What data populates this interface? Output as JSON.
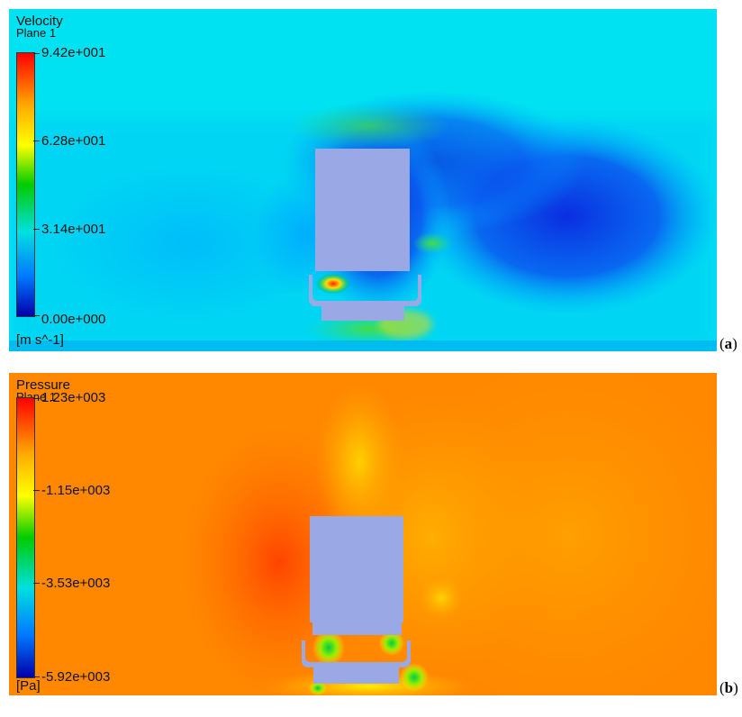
{
  "panel_a": {
    "legend_title": "Velocity",
    "legend_subtitle": "Plane 1",
    "ticks": [
      "9.42e+001",
      "6.28e+001",
      "3.14e+001",
      "0.00e+000"
    ],
    "unit": "[m s^-1]",
    "label": "(a)",
    "label_letter": "a"
  },
  "panel_b": {
    "legend_title": "Pressure",
    "legend_subtitle": "Plane 1",
    "ticks": [
      "1.23e+003",
      "-1.15e+003",
      "-3.53e+003",
      "-5.92e+003"
    ],
    "unit": "[Pa]",
    "label": "(b)",
    "label_letter": "b"
  },
  "colors": {
    "velocity_background": "#00e6f0",
    "pressure_background": "#ff8c00",
    "body": "#9aa8e6",
    "colormap": [
      "#ff0000",
      "#ffaa00",
      "#ffff00",
      "#00cc00",
      "#00e0e0",
      "#0055ff",
      "#0000aa"
    ]
  }
}
